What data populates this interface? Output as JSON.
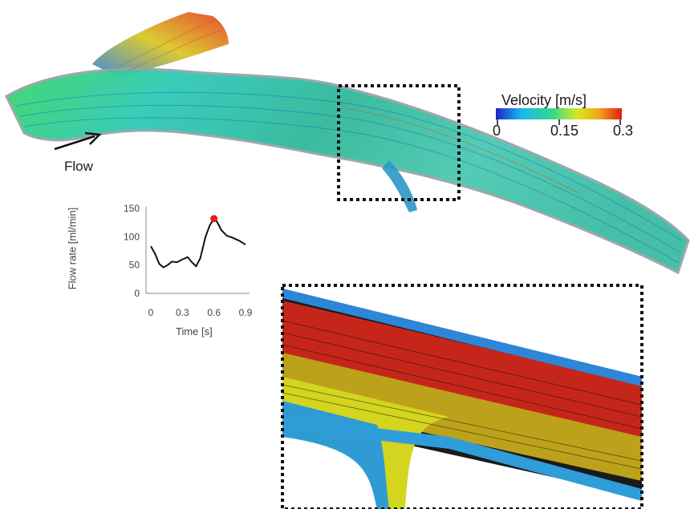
{
  "flow_label": "Flow",
  "colorbar": {
    "title": "Velocity [m/s]",
    "ticks": [
      "0",
      "0.15",
      "0.3"
    ],
    "colors": [
      "#1f22c8",
      "#18b8ee",
      "#33d98a",
      "#d8e820",
      "#f2a41a",
      "#e21c14"
    ]
  },
  "chart_data": {
    "type": "line",
    "xlabel": "Time [s]",
    "ylabel": "Flow rate [ml/min]",
    "xlim": [
      0,
      0.9
    ],
    "ylim": [
      0,
      150
    ],
    "xticks": [
      "0",
      "0.3",
      "0.6",
      "0.9"
    ],
    "yticks": [
      "0",
      "50",
      "100",
      "150"
    ],
    "x": [
      0,
      0.04,
      0.08,
      0.12,
      0.16,
      0.2,
      0.25,
      0.3,
      0.35,
      0.39,
      0.43,
      0.47,
      0.52,
      0.56,
      0.6,
      0.63,
      0.67,
      0.72,
      0.78,
      0.84,
      0.9
    ],
    "y": [
      83,
      70,
      52,
      46,
      50,
      56,
      55,
      60,
      64,
      55,
      48,
      62,
      100,
      120,
      132,
      126,
      112,
      102,
      98,
      93,
      86
    ],
    "highlight": {
      "x": 0.6,
      "y": 132,
      "color": "#e41e1e"
    }
  }
}
